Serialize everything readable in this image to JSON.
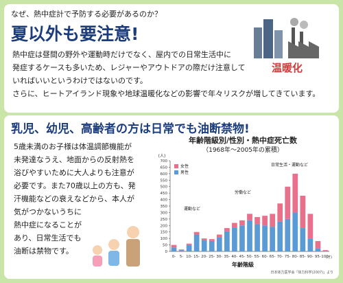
{
  "header": {
    "question": "なぜ、熱中症計で予防する必要があるのか？",
    "title": "夏以外も要注意!",
    "icon_label": "温暖化"
  },
  "intro": {
    "lines": [
      "熱中症は昼間の野外や運動時だけでなく、屋内での日常生活中に",
      "発症するケースも多いため、レジャーやアウトドアの際だけ注意して",
      "いればいいというわけではないのです。",
      "さらに、ヒートアイランド現象や地球温暖化などの影響で年々リスクが増してきています。"
    ]
  },
  "section": {
    "title": "乳児、幼児、高齢者の方は日常でも油断禁物!",
    "lines": [
      "5歳未満のお子様は体温調節機能が",
      "未発達なうえ、地面からの反射熱を",
      "浴びやすいために大人よりも注意が",
      "必要です。また70歳以上の方も、発",
      "汗機能などの衰えなどから、本人が",
      "気がつかないうちに",
      "熱中症になることが",
      "あり、日常生活でも",
      "油断は禁物です。"
    ]
  },
  "chart_data": {
    "type": "stacked_bar",
    "title": "年齢階級別/性別・熱中症死亡数",
    "subtitle": "（1968年～2005年の累積）",
    "y_label": "(人)",
    "x_label": "年齢階級",
    "x_unit": "(才)",
    "source": "日本体力医学会「体力科学(2007)」より",
    "categories": [
      "0-",
      "5-",
      "10-",
      "15-",
      "20-",
      "25-",
      "30-",
      "35-",
      "40-",
      "45-",
      "50-",
      "55-",
      "60-",
      "65-",
      "70-",
      "75-",
      "80-",
      "85-",
      "90-",
      "95-",
      "100-"
    ],
    "series": [
      {
        "name": "男性",
        "color": "#5b9bd5",
        "values": [
          30,
          10,
          50,
          130,
          85,
          80,
          110,
          155,
          185,
          200,
          240,
          210,
          200,
          190,
          230,
          250,
          300,
          180,
          100,
          25,
          3
        ]
      },
      {
        "name": "女性",
        "color": "#e8708a",
        "values": [
          20,
          5,
          10,
          20,
          15,
          15,
          20,
          25,
          35,
          40,
          50,
          55,
          75,
          100,
          140,
          250,
          300,
          250,
          190,
          55,
          7
        ]
      }
    ],
    "ylim": [
      0,
      700
    ],
    "yticks": [
      0,
      50,
      100,
      150,
      200,
      250,
      300,
      350,
      400,
      450,
      500,
      550,
      600,
      650,
      700
    ],
    "annotations": [
      "運動など",
      "労働など",
      "日常生活・運動など"
    ]
  }
}
